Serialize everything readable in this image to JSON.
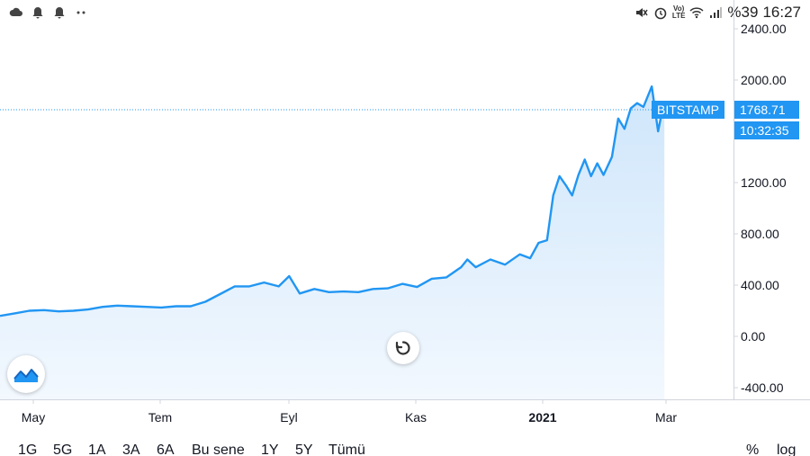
{
  "status_bar": {
    "battery_text": "%39",
    "time": "16:27",
    "volte_line1": "Vo)",
    "volte_line2": "LTE",
    "icons": [
      "cloud-icon",
      "bell-icon",
      "bell-icon",
      "dots-icon",
      "mute-icon",
      "alarm-icon",
      "volte-icon",
      "wifi-icon",
      "signal-icon"
    ]
  },
  "chart_data": {
    "type": "area",
    "title": "",
    "xlabel": "",
    "ylabel": "",
    "ylim": [
      -500,
      2500
    ],
    "y_ticks": [
      "2400.00",
      "2000.00",
      "1200.00",
      "800.00",
      "400.00",
      "0.00",
      "-400.00"
    ],
    "y_tick_values": [
      2400,
      2000,
      1200,
      800,
      400,
      0,
      -400
    ],
    "x_ticks": [
      {
        "label": "May",
        "bold": false
      },
      {
        "label": "Tem",
        "bold": false
      },
      {
        "label": "Eyl",
        "bold": false
      },
      {
        "label": "Kas",
        "bold": false
      },
      {
        "label": "2021",
        "bold": true
      },
      {
        "label": "Mar",
        "bold": false
      }
    ],
    "x_range": [
      "2020-04-15",
      "2021-03-31"
    ],
    "series": [
      {
        "color": "#2196f3",
        "points": [
          [
            "2020-04-15",
            160
          ],
          [
            "2020-04-22",
            180
          ],
          [
            "2020-04-29",
            200
          ],
          [
            "2020-05-06",
            205
          ],
          [
            "2020-05-13",
            195
          ],
          [
            "2020-05-20",
            200
          ],
          [
            "2020-05-27",
            210
          ],
          [
            "2020-06-03",
            230
          ],
          [
            "2020-06-10",
            240
          ],
          [
            "2020-06-17",
            235
          ],
          [
            "2020-06-24",
            230
          ],
          [
            "2020-07-01",
            225
          ],
          [
            "2020-07-08",
            235
          ],
          [
            "2020-07-15",
            235
          ],
          [
            "2020-07-22",
            270
          ],
          [
            "2020-07-29",
            330
          ],
          [
            "2020-08-05",
            390
          ],
          [
            "2020-08-12",
            390
          ],
          [
            "2020-08-19",
            420
          ],
          [
            "2020-08-26",
            390
          ],
          [
            "2020-08-31",
            470
          ],
          [
            "2020-09-05",
            335
          ],
          [
            "2020-09-12",
            370
          ],
          [
            "2020-09-19",
            345
          ],
          [
            "2020-09-26",
            350
          ],
          [
            "2020-10-03",
            345
          ],
          [
            "2020-10-10",
            370
          ],
          [
            "2020-10-17",
            375
          ],
          [
            "2020-10-24",
            410
          ],
          [
            "2020-10-31",
            385
          ],
          [
            "2020-11-07",
            450
          ],
          [
            "2020-11-14",
            460
          ],
          [
            "2020-11-21",
            540
          ],
          [
            "2020-11-24",
            600
          ],
          [
            "2020-11-28",
            540
          ],
          [
            "2020-12-05",
            600
          ],
          [
            "2020-12-12",
            560
          ],
          [
            "2020-12-19",
            640
          ],
          [
            "2020-12-24",
            610
          ],
          [
            "2020-12-28",
            730
          ],
          [
            "2021-01-01",
            750
          ],
          [
            "2021-01-04",
            1100
          ],
          [
            "2021-01-07",
            1250
          ],
          [
            "2021-01-10",
            1180
          ],
          [
            "2021-01-13",
            1100
          ],
          [
            "2021-01-16",
            1260
          ],
          [
            "2021-01-19",
            1380
          ],
          [
            "2021-01-22",
            1250
          ],
          [
            "2021-01-25",
            1350
          ],
          [
            "2021-01-28",
            1260
          ],
          [
            "2021-02-01",
            1400
          ],
          [
            "2021-02-04",
            1700
          ],
          [
            "2021-02-07",
            1620
          ],
          [
            "2021-02-10",
            1780
          ],
          [
            "2021-02-13",
            1820
          ],
          [
            "2021-02-16",
            1790
          ],
          [
            "2021-02-20",
            1950
          ],
          [
            "2021-02-23",
            1600
          ],
          [
            "2021-02-25",
            1760
          ],
          [
            "2021-02-26",
            1768.71
          ]
        ]
      }
    ],
    "last_value_label": "BITSTAMP",
    "last_value": "1768.71",
    "countdown": "10:32:35",
    "grid": false,
    "legend": "none"
  },
  "time_range": {
    "buttons": [
      "1G",
      "5G",
      "1A",
      "3A",
      "6A",
      "Bu sene",
      "1Y",
      "5Y",
      "Tümü"
    ],
    "right_buttons": [
      "%",
      "log"
    ]
  },
  "colors": {
    "line": "#2196f3",
    "area_top": "#cfe6fb",
    "area_bottom": "#f2f8fe",
    "axis": "#d1d4dc",
    "dotted": "#2196f3"
  }
}
